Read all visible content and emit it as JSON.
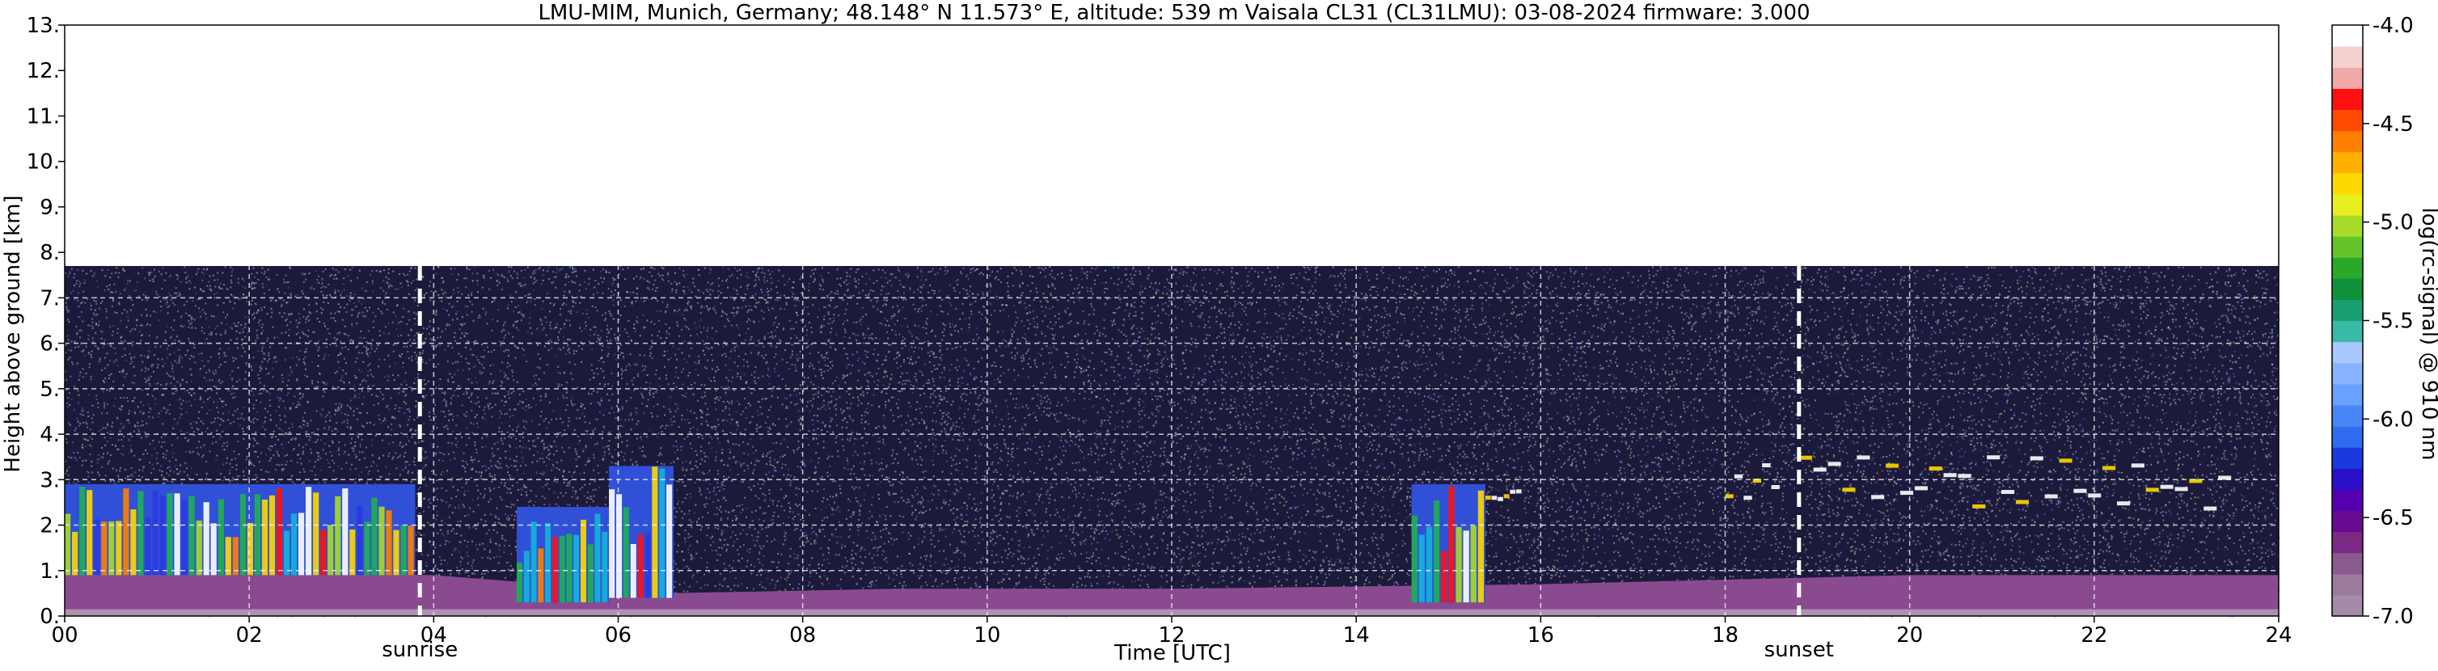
{
  "chart_data": {
    "type": "heatmap",
    "title": "LMU-MIM, Munich, Germany; 48.148° N 11.573° E, altitude: 539 m    Vaisala CL31 (CL31LMU): 03-08-2024    firmware: 3.000",
    "xlabel": "Time [UTC]",
    "ylabel": "Height above ground [km]",
    "xlim": [
      0,
      24
    ],
    "ylim": [
      0,
      13
    ],
    "x_ticks": [
      "00",
      "02",
      "04",
      "06",
      "08",
      "10",
      "12",
      "14",
      "16",
      "18",
      "20",
      "22",
      "24"
    ],
    "x_tick_values": [
      0,
      2,
      4,
      6,
      8,
      10,
      12,
      14,
      16,
      18,
      20,
      22,
      24
    ],
    "y_ticks": [
      "0.",
      "1.",
      "2.",
      "3.",
      "4.",
      "5.",
      "6.",
      "7.",
      "8.",
      "9.",
      "10.",
      "11.",
      "12.",
      "13."
    ],
    "y_tick_values": [
      0,
      1,
      2,
      3,
      4,
      5,
      6,
      7,
      8,
      9,
      10,
      11,
      12,
      13
    ],
    "grid": true,
    "data_top_km": 7.7,
    "markers": [
      {
        "label": "sunrise",
        "time_utc": 3.85
      },
      {
        "label": "sunset",
        "time_utc": 18.8
      }
    ],
    "cloud_layers": [
      {
        "t_start": 0.0,
        "t_end": 3.8,
        "base_km": 0.9,
        "top_km": 2.9,
        "signal": "strong"
      },
      {
        "t_start": 4.9,
        "t_end": 5.9,
        "base_km": 0.3,
        "top_km": 2.4,
        "signal": "strong"
      },
      {
        "t_start": 5.9,
        "t_end": 6.6,
        "base_km": 0.4,
        "top_km": 3.3,
        "signal": "strong"
      },
      {
        "t_start": 14.6,
        "t_end": 15.4,
        "base_km": 0.3,
        "top_km": 2.9,
        "signal": "strong"
      },
      {
        "t_start": 15.4,
        "t_end": 15.8,
        "base_km": 2.6,
        "top_km": 2.8,
        "signal": "medium"
      },
      {
        "t_start": 18.0,
        "t_end": 18.6,
        "base_km": 2.6,
        "top_km": 3.7,
        "signal": "medium"
      },
      {
        "t_start": 18.8,
        "t_end": 23.5,
        "base_km": 2.4,
        "top_km": 3.6,
        "signal": "medium"
      }
    ],
    "boundary_layer_top_km": [
      {
        "t": 0,
        "h": 1.0
      },
      {
        "t": 4,
        "h": 0.9
      },
      {
        "t": 6.5,
        "h": 0.5
      },
      {
        "t": 9,
        "h": 0.6
      },
      {
        "t": 12,
        "h": 0.6
      },
      {
        "t": 16,
        "h": 0.7
      },
      {
        "t": 20,
        "h": 0.9
      },
      {
        "t": 24,
        "h": 0.9
      }
    ],
    "colorbar": {
      "label": "log(rc-signal) @ 910 nm",
      "min": -7.0,
      "max": -4.0,
      "ticks": [
        "-4.0",
        "-4.5",
        "-5.0",
        "-5.5",
        "-6.0",
        "-6.5",
        "-7.0"
      ],
      "tick_values": [
        -4.0,
        -4.5,
        -5.0,
        -5.5,
        -6.0,
        -6.5,
        -7.0
      ],
      "colors": [
        "#a48ba8",
        "#9b7a9e",
        "#8a5a8f",
        "#7a2a85",
        "#6a0a90",
        "#5500b0",
        "#2a10c8",
        "#1a3ae0",
        "#2f6cf0",
        "#4a86f8",
        "#6aa0ff",
        "#88b4ff",
        "#a8c8ff",
        "#3ab8a8",
        "#1aa070",
        "#10903a",
        "#2aa82a",
        "#66c42a",
        "#a8dc2a",
        "#e6f020",
        "#ffd800",
        "#ffb000",
        "#ff8000",
        "#ff4a00",
        "#ff1010",
        "#f0a8a8",
        "#f4d0d0",
        "#ffffff"
      ]
    }
  }
}
